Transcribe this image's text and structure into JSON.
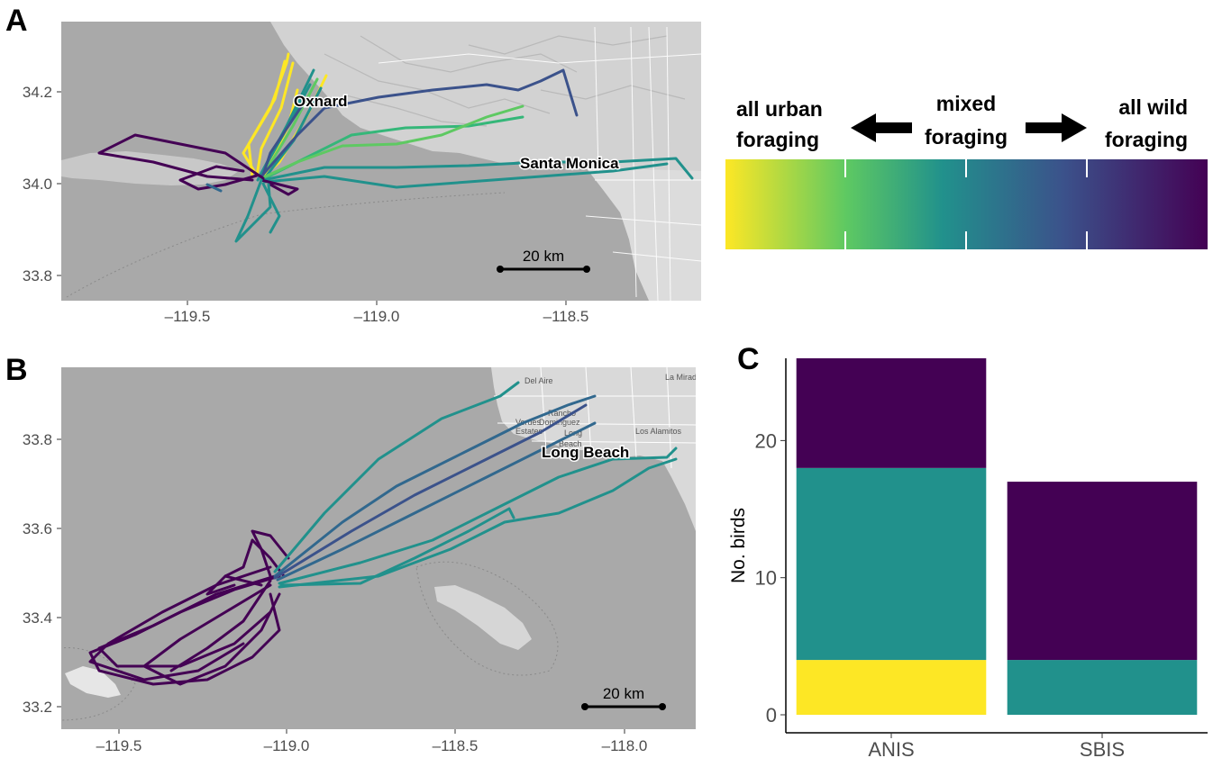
{
  "panels": {
    "a": {
      "letter": "A",
      "xticks": [
        "–119.5",
        "–119.0",
        "–118.5"
      ],
      "yticks": [
        "33.8",
        "34.0",
        "34.2"
      ],
      "places": [
        "Oxnard",
        "Santa Monica"
      ],
      "scale_label": "20 km"
    },
    "b": {
      "letter": "B",
      "xticks": [
        "–119.5",
        "–119.0",
        "–118.5",
        "–118.0"
      ],
      "yticks": [
        "33.2",
        "33.4",
        "33.6",
        "33.8"
      ],
      "places": [
        "Long Beach"
      ],
      "minor_places": [
        "Del Aire",
        "La Mirada",
        "Rancho",
        "Dominguez",
        "Long",
        "Beach",
        "Los Alamitos",
        "Estates",
        "Verdes"
      ],
      "scale_label": "20 km"
    },
    "c": {
      "letter": "C"
    }
  },
  "legend": {
    "left_line1": "all urban",
    "left_line2": "foraging",
    "mid_line1": "mixed",
    "mid_line2": "foraging",
    "right_line1": "all wild",
    "right_line2": "foraging",
    "colors": [
      "#fde725",
      "#35b779",
      "#21918c",
      "#31688e",
      "#440154"
    ]
  },
  "chart_data": {
    "type": "bar",
    "stacked": true,
    "categories": [
      "ANIS",
      "SBIS"
    ],
    "ylabel": "No. birds",
    "ylim": [
      0,
      26
    ],
    "yticks": [
      0,
      10,
      20
    ],
    "grid": false,
    "series": [
      {
        "color": "#fde725",
        "values": [
          4,
          0
        ]
      },
      {
        "color": "#21918c",
        "values": [
          14,
          4
        ]
      },
      {
        "color": "#440154",
        "values": [
          8,
          13
        ]
      }
    ]
  }
}
